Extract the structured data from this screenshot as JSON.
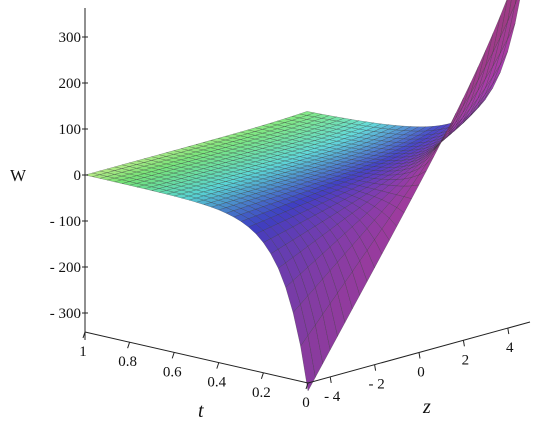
{
  "chart_data": {
    "type": "surface3d",
    "title": "",
    "axes": {
      "w": {
        "label": "W",
        "ticks": [
          300,
          200,
          100,
          0,
          -100,
          -200,
          -300
        ],
        "tick_labels": [
          "300",
          "200",
          "100",
          "0",
          "- 100",
          "- 200",
          "- 300"
        ],
        "range": [
          -300,
          300
        ]
      },
      "t": {
        "label": "t",
        "ticks": [
          1,
          0.8,
          0.6,
          0.4,
          0.2,
          0
        ],
        "tick_labels": [
          "1",
          "0.8",
          "0.6",
          "0.4",
          "0.2",
          "0"
        ],
        "range": [
          0,
          1
        ]
      },
      "z": {
        "label": "z",
        "ticks": [
          -4,
          -2,
          0,
          2,
          4
        ],
        "tick_labels": [
          "- 4",
          "- 2",
          "0",
          "2",
          "4"
        ],
        "range": [
          -5,
          5
        ]
      }
    },
    "surface": {
      "description_values": "W(t,z) ≈ 0 over most of the domain; as t → 0, W → -330 at z = -5 and W → 370 at z = 5",
      "corner_values": [
        {
          "t": 1,
          "z": -5,
          "W": 0
        },
        {
          "t": 1,
          "z": 5,
          "W": 0
        },
        {
          "t": 0,
          "z": -5,
          "W": -330
        },
        {
          "t": 0,
          "z": 5,
          "W": 370
        }
      ],
      "colormap": "rainbow-pastel (cyan/green → yellow → blue → magenta)"
    },
    "grid": false
  }
}
